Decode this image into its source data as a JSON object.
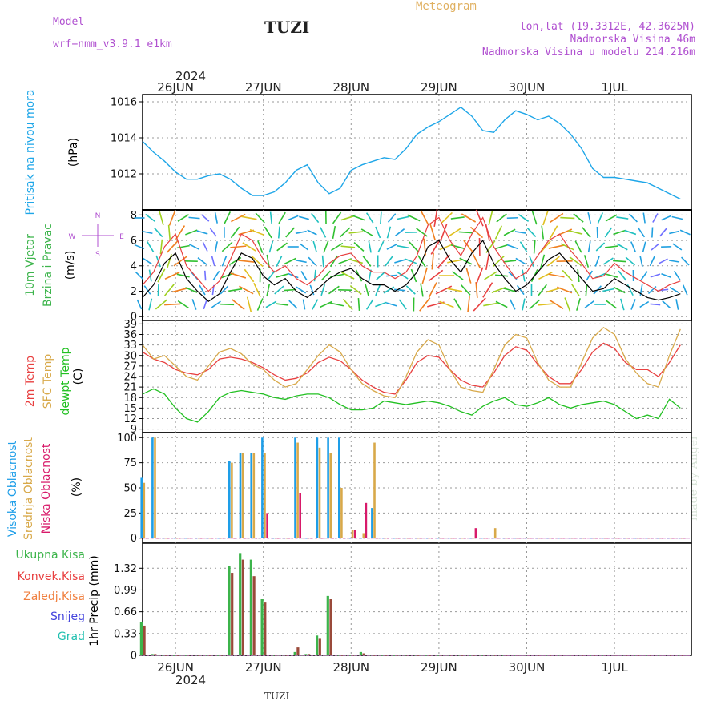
{
  "header": {
    "model_label": "Model",
    "model_name": "wrf−nmm_v3.9.1 e1km",
    "title": "TUZI",
    "meteogram_label": "Meteogram",
    "location": "lon,lat (19.3312E, 42.3625N)",
    "altitude": "Nadmorska Visina 46m",
    "model_altitude": "Nadmorska Visina u modelu 214.216m",
    "year_top": "2024",
    "year_bottom": "2024",
    "footer_station": "TUZI",
    "credit": "made by Angel"
  },
  "colors": {
    "pressure": "#1ea6e8",
    "temp2m": "#e84040",
    "sfc_temp": "#d8a94a",
    "dewpoint": "#22c022",
    "high_cloud": "#1e9ee8",
    "mid_cloud": "#d8a94a",
    "low_cloud": "#d81a6a",
    "precip_total": "#3cb44b",
    "precip_conv": "#9a4a3a",
    "snow": "#4444dd",
    "hail": "#22c0b0",
    "purple_text": "#b050d0",
    "meteogram_text": "#e0b060"
  },
  "chart_data": [
    {
      "type": "line",
      "title": "",
      "ylabel": [
        "Pritisak na nivou mora",
        "(hPa)"
      ],
      "ylim": [
        1010,
        1016.4
      ],
      "yticks": [
        1012,
        1014,
        1016
      ],
      "x_start": "2024-06-25T15:00",
      "x_step_hours": 3,
      "series": [
        {
          "name": "Pritisak na nivou mora",
          "color": "#1ea6e8",
          "values": [
            1013.8,
            1013.2,
            1012.7,
            1012.1,
            1011.7,
            1011.7,
            1011.9,
            1012.0,
            1011.7,
            1011.2,
            1010.8,
            1010.8,
            1011.0,
            1011.5,
            1012.2,
            1012.5,
            1011.5,
            1010.9,
            1011.2,
            1012.2,
            1012.5,
            1012.7,
            1012.9,
            1012.8,
            1013.4,
            1014.2,
            1014.6,
            1014.9,
            1015.3,
            1015.7,
            1015.2,
            1014.4,
            1014.3,
            1015.0,
            1015.5,
            1015.3,
            1015.0,
            1015.2,
            1014.8,
            1014.2,
            1013.4,
            1012.3,
            1011.8,
            1011.8,
            1011.7,
            1011.6,
            1011.5,
            1011.2,
            1010.9,
            1010.6
          ]
        }
      ]
    },
    {
      "type": "line",
      "title": "",
      "ylabel": [
        "10m Vjetar",
        "Brzina i Pravac",
        "(m/s)"
      ],
      "ylim": [
        -0.3,
        8.4
      ],
      "yticks": [
        0,
        2,
        4,
        6,
        8
      ],
      "x_start": "2024-06-25T15:00",
      "x_step_hours": 3,
      "compass": [
        "N",
        "E",
        "W",
        "S"
      ],
      "series": [
        {
          "name": "Brzina",
          "color": "#000000",
          "values": [
            1.5,
            2.5,
            4.2,
            5.0,
            3.0,
            2.0,
            1.2,
            1.8,
            3.5,
            5.0,
            4.6,
            3.2,
            2.5,
            3.0,
            2.0,
            1.5,
            2.2,
            3.0,
            3.5,
            3.8,
            3.0,
            2.5,
            2.5,
            2.0,
            2.5,
            3.5,
            5.5,
            6.0,
            4.5,
            3.5,
            5.0,
            6.0,
            4.2,
            3.0,
            2.0,
            2.5,
            3.5,
            4.5,
            5.0,
            4.0,
            3.0,
            2.0,
            2.2,
            3.0,
            2.5,
            2.0,
            1.5,
            1.3,
            1.5,
            1.8
          ]
        },
        {
          "name": "Udari",
          "color": "#e84040",
          "values": [
            2.5,
            3.5,
            5.5,
            6.5,
            4.0,
            3.0,
            2.0,
            2.8,
            4.5,
            6.5,
            6.0,
            4.5,
            3.5,
            4.0,
            3.0,
            2.5,
            3.2,
            4.2,
            4.8,
            5.0,
            4.0,
            3.5,
            3.5,
            3.0,
            3.5,
            4.8,
            7.2,
            7.8,
            6.0,
            4.8,
            6.5,
            7.8,
            5.5,
            4.2,
            3.0,
            3.5,
            4.8,
            6.0,
            6.5,
            5.2,
            4.2,
            3.0,
            3.2,
            4.2,
            3.5,
            3.0,
            2.5,
            2.0,
            2.5,
            2.8
          ]
        }
      ]
    },
    {
      "type": "line",
      "title": "",
      "ylabel": [
        "2m Temp",
        "SFC Temp",
        "dewpt Temp",
        "(C)"
      ],
      "ylim": [
        8,
        40
      ],
      "yticks": [
        9,
        12,
        15,
        18,
        21,
        24,
        27,
        30,
        33,
        36,
        39
      ],
      "x_start": "2024-06-25T15:00",
      "x_step_hours": 3,
      "series": [
        {
          "name": "2m Temp",
          "color": "#e84040",
          "values": [
            31,
            29,
            28,
            26,
            25,
            24.5,
            26,
            29,
            29.5,
            29,
            28,
            26.5,
            24.5,
            23,
            23.5,
            25,
            28,
            29.5,
            28.5,
            26,
            23,
            21,
            19.5,
            19,
            23,
            28,
            30,
            29.5,
            26,
            23,
            21.5,
            21,
            25,
            30,
            32.5,
            31.5,
            27.5,
            24,
            22,
            22,
            26,
            31,
            33.5,
            32,
            28,
            26,
            26,
            24,
            28,
            33
          ]
        },
        {
          "name": "SFC Temp",
          "color": "#d8a94a",
          "values": [
            33,
            29,
            30,
            27,
            24,
            23,
            27,
            31,
            32,
            30.5,
            27.5,
            26,
            23,
            21,
            22,
            26,
            30,
            33,
            31,
            26,
            22,
            20,
            18.5,
            18,
            24,
            31,
            34.5,
            33,
            26,
            21,
            20,
            19.5,
            26,
            33,
            36,
            35,
            28,
            23,
            21,
            21,
            28,
            35,
            38,
            36,
            29,
            25,
            22,
            21,
            30,
            37.5
          ]
        },
        {
          "name": "dewpt Temp",
          "color": "#22c022",
          "values": [
            19,
            20.5,
            19,
            15,
            12,
            11,
            14,
            18,
            19.5,
            20,
            19.5,
            19,
            18,
            17.5,
            18.5,
            19,
            19,
            18,
            16,
            14.5,
            14.5,
            15,
            17,
            16.5,
            16,
            16.5,
            17,
            16.5,
            15.5,
            14,
            13,
            15.5,
            17,
            18,
            16,
            15.5,
            16.5,
            18,
            16,
            15,
            16,
            16.5,
            17,
            16,
            14,
            12,
            13,
            12,
            17.5,
            15
          ]
        }
      ]
    },
    {
      "type": "bar",
      "title": "",
      "ylabel": [
        "Visoka Oblacnost",
        "Srednja Oblacnost",
        "Niska Oblacnost",
        "(%)"
      ],
      "ylim": [
        -5,
        105
      ],
      "yticks": [
        0,
        25,
        50,
        75,
        100
      ],
      "x_start": "2024-06-25T15:00",
      "x_step_hours": 3,
      "series": [
        {
          "name": "Visoka Oblacnost",
          "color": "#1e9ee8",
          "values": [
            60,
            100,
            0,
            0,
            0,
            0,
            0,
            0,
            77,
            85,
            85,
            100,
            0,
            0,
            100,
            0,
            100,
            100,
            100,
            0,
            0,
            30,
            0,
            0,
            0,
            0,
            0,
            0,
            0,
            0,
            0,
            0,
            0,
            0,
            0,
            0,
            0,
            0,
            0,
            0,
            0,
            0,
            0,
            0,
            0,
            0,
            0,
            0,
            0,
            0
          ]
        },
        {
          "name": "Srednja Oblacnost",
          "color": "#d8a94a",
          "values": [
            55,
            100,
            0,
            0,
            0,
            0,
            0,
            0,
            75,
            85,
            85,
            85,
            0,
            0,
            95,
            0,
            90,
            85,
            50,
            8,
            5,
            95,
            0,
            0,
            0,
            0,
            0,
            0,
            0,
            0,
            0,
            0,
            10,
            0,
            0,
            0,
            0,
            0,
            0,
            0,
            0,
            0,
            0,
            0,
            0,
            0,
            0,
            0,
            0,
            0
          ]
        },
        {
          "name": "Niska Oblacnost",
          "color": "#d81a6a",
          "values": [
            0,
            0,
            0,
            0,
            0,
            0,
            0,
            0,
            0,
            0,
            0,
            25,
            0,
            0,
            45,
            0,
            0,
            0,
            0,
            8,
            35,
            0,
            0,
            0,
            0,
            0,
            0,
            0,
            0,
            0,
            10,
            0,
            0,
            0,
            0,
            0,
            0,
            0,
            0,
            0,
            0,
            0,
            0,
            0,
            0,
            0,
            0,
            0,
            0,
            0
          ]
        }
      ]
    },
    {
      "type": "bar",
      "title": "",
      "ylabel": [
        "Ukupna Kisa",
        "Konvek.Kisa",
        "Zaledj.Kisa",
        "Snijeg",
        "Grad",
        "1hr Precip (mm)"
      ],
      "ylim": [
        0,
        1.7
      ],
      "yticks": [
        0,
        0.33,
        0.66,
        0.99,
        1.32
      ],
      "x_start": "2024-06-25T15:00",
      "x_step_hours": 3,
      "series": [
        {
          "name": "Ukupna Kisa",
          "color": "#3cb44b",
          "values": [
            0.5,
            0.02,
            0,
            0,
            0,
            0,
            0,
            0,
            1.35,
            1.55,
            1.45,
            0.85,
            0,
            0,
            0.05,
            0.02,
            0.3,
            0.9,
            0,
            0,
            0.05,
            0,
            0,
            0,
            0,
            0,
            0,
            0,
            0,
            0,
            0,
            0,
            0,
            0,
            0,
            0,
            0,
            0,
            0,
            0,
            0,
            0,
            0,
            0,
            0,
            0,
            0,
            0,
            0,
            0
          ]
        },
        {
          "name": "Konvek.Kisa",
          "color": "#9a4a3a",
          "values": [
            0.45,
            0.02,
            0,
            0,
            0,
            0,
            0,
            0,
            1.25,
            1.45,
            1.2,
            0.8,
            0,
            0,
            0.12,
            0.02,
            0.25,
            0.85,
            0,
            0,
            0.03,
            0,
            0,
            0,
            0,
            0,
            0,
            0,
            0,
            0,
            0,
            0,
            0,
            0,
            0,
            0,
            0,
            0,
            0,
            0,
            0,
            0,
            0,
            0,
            0,
            0,
            0,
            0,
            0,
            0
          ]
        }
      ]
    }
  ],
  "x_axis": {
    "date_labels": [
      "26JUN",
      "27JUN",
      "28JUN",
      "29JUN",
      "30JUN",
      "1JUL"
    ]
  },
  "legend": {
    "pressure": "Pritisak na nivou mora",
    "pressure_unit": "(hPa)",
    "wind1": "10m Vjetar",
    "wind2": "Brzina i Pravac",
    "wind_unit": "(m/s)",
    "temp1": "2m Temp",
    "temp2": "SFC Temp",
    "temp3": "dewpt Temp",
    "temp_unit": "(C)",
    "cloud1": "Visoka Oblacnost",
    "cloud2": "Srednja Oblacnost",
    "cloud3": "Niska Oblacnost",
    "cloud_unit": "(%)",
    "precip1": "Ukupna Kisa",
    "precip2": "Konvek.Kisa",
    "precip3": "Zaledj.Kisa",
    "precip4": "Snijeg",
    "precip5": "Grad",
    "precip_unit": "1hr Precip (mm)"
  }
}
